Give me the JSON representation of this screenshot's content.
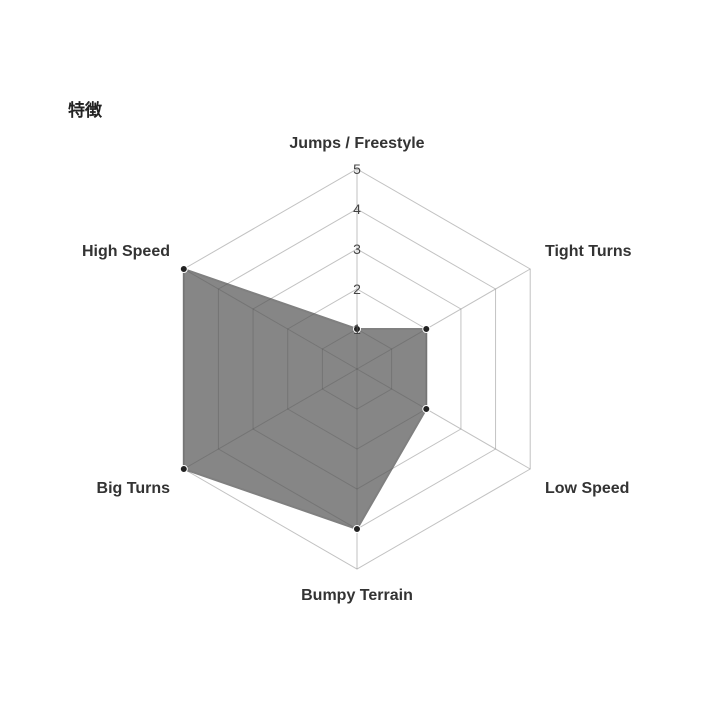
{
  "chart_data": {
    "type": "radar",
    "title": "特徴",
    "categories": [
      "Jumps / Freestyle",
      "Tight Turns",
      "Low Speed",
      "Bumpy Terrain",
      "Big Turns",
      "High Speed"
    ],
    "values": [
      1,
      2,
      2,
      4,
      5,
      5
    ],
    "rlim": [
      0,
      5
    ],
    "ticks": [
      "1",
      "2",
      "3",
      "4",
      "5"
    ],
    "grid": true,
    "legend": "none",
    "colors": {
      "fill": "#808080",
      "point": "#222222",
      "grid": "#dddddd"
    }
  }
}
